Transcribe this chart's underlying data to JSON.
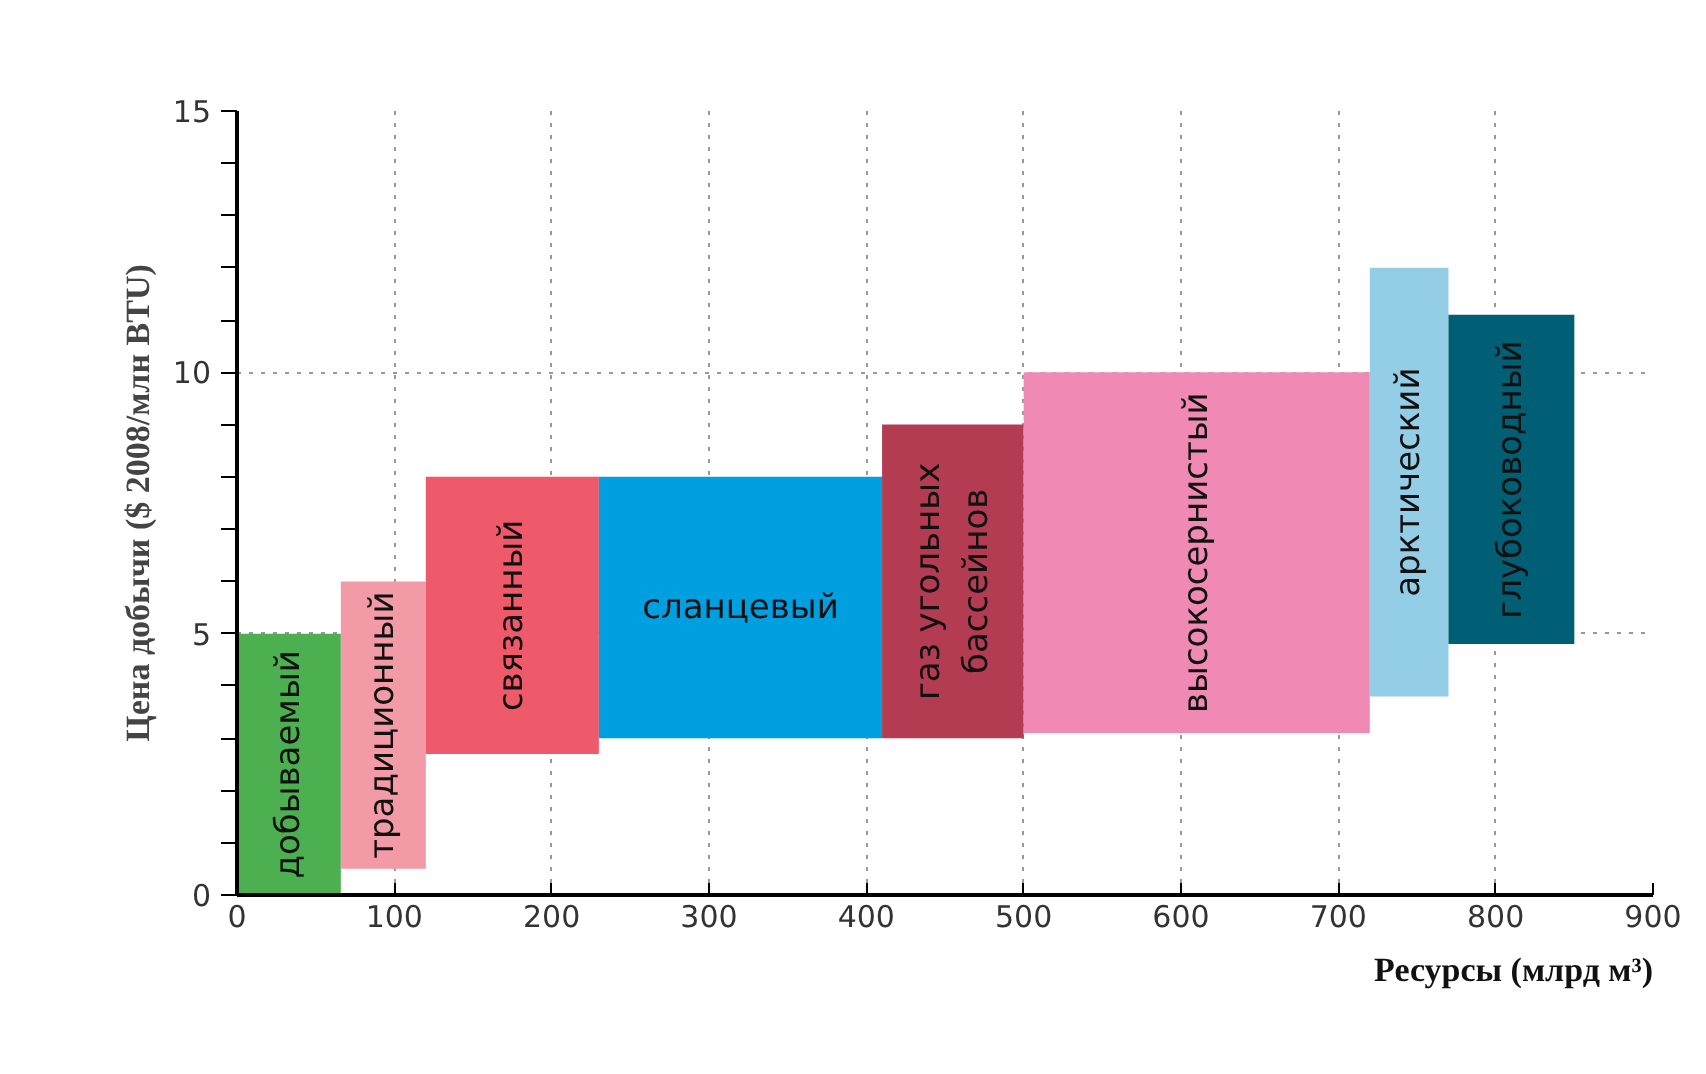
{
  "chart_data": {
    "type": "histogram",
    "xlabel": "Ресурсы (млрд м³)",
    "ylabel": "Цена добычи ($ 2008/млн BTU)",
    "categories": [
      "добываемый",
      "традиционный",
      "связанный",
      "сланцевый",
      "газ угольных\nбассейнов",
      "высокосернистый",
      "арктический",
      "глубоководный"
    ],
    "bins": [
      0,
      66,
      120,
      230,
      410,
      500,
      720,
      770,
      850
    ],
    "base": [
      0,
      0.5,
      2.7,
      3,
      3,
      3.1,
      3.8,
      4.8
    ],
    "values": [
      5,
      5.5,
      5.3,
      5,
      6,
      6.9,
      8.2,
      6.3
    ],
    "colors": [
      "#4cb050",
      "#f29aa6",
      "#ef5a6a",
      "#009fe0",
      "#b33c52",
      "#f08ab5",
      "#93cde6",
      "#005f74"
    ],
    "xlim": [
      0,
      900
    ],
    "xticks": [
      0,
      100,
      200,
      300,
      400,
      500,
      600,
      700,
      800,
      900
    ],
    "ylim": [
      0,
      15
    ],
    "yticks": [
      0,
      5,
      10,
      15
    ],
    "grid": true
  }
}
